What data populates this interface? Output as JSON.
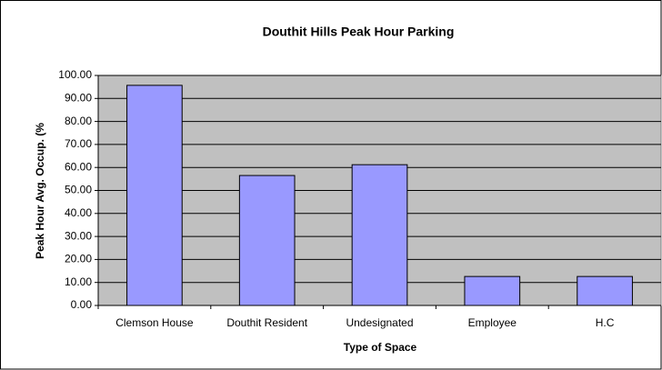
{
  "chart_data": {
    "type": "bar",
    "title": "Douthit Hills Peak Hour Parking",
    "x_label": "Type of Space",
    "y_label": "Peak Hour Avg. Occup. (%",
    "categories": [
      "Clemson House",
      "Douthit Resident",
      "Undesignated",
      "Employee",
      "H.C"
    ],
    "values": [
      95.7,
      56.5,
      61.2,
      12.6,
      12.6
    ],
    "color": "#9999ff",
    "ylim": [
      0,
      100
    ],
    "yticks": [
      {
        "value": 0,
        "label": "0.00"
      },
      {
        "value": 10,
        "label": "10.00"
      },
      {
        "value": 20,
        "label": "20.00"
      },
      {
        "value": 30,
        "label": "30.00"
      },
      {
        "value": 40,
        "label": "40.00"
      },
      {
        "value": 50,
        "label": "50.00"
      },
      {
        "value": 60,
        "label": "60.00"
      },
      {
        "value": 70,
        "label": "70.00"
      },
      {
        "value": 80,
        "label": "80.00"
      },
      {
        "value": 90,
        "label": "90.00"
      },
      {
        "value": 100,
        "label": "100.00"
      }
    ],
    "grid": true
  }
}
